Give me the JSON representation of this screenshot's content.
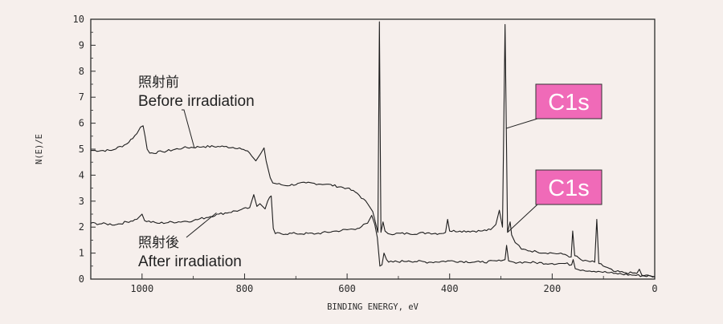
{
  "chart_data": {
    "type": "line",
    "title": "",
    "xlabel": "BINDING ENERGY, eV",
    "ylabel": "N(E)/E",
    "xlim": [
      1100,
      0
    ],
    "ylim": [
      0,
      10
    ],
    "x_reversed": true,
    "x_ticks": [
      1000,
      800,
      600,
      400,
      200,
      0
    ],
    "y_ticks": [
      0,
      1,
      2,
      3,
      4,
      5,
      6,
      7,
      8,
      9,
      10
    ],
    "grid": false,
    "legend": "none",
    "series": [
      {
        "name": "照射前 Before irradiation",
        "color": "#1e1e1e",
        "points": [
          [
            1100,
            4.95
          ],
          [
            1060,
            4.95
          ],
          [
            1030,
            5.2
          ],
          [
            1010,
            5.6
          ],
          [
            1003,
            5.85
          ],
          [
            998,
            5.9
          ],
          [
            994,
            5.5
          ],
          [
            990,
            5.0
          ],
          [
            985,
            4.85
          ],
          [
            960,
            4.9
          ],
          [
            920,
            5.05
          ],
          [
            880,
            5.1
          ],
          [
            840,
            5.1
          ],
          [
            810,
            5.05
          ],
          [
            790,
            4.85
          ],
          [
            778,
            4.55
          ],
          [
            768,
            4.85
          ],
          [
            762,
            5.05
          ],
          [
            758,
            4.55
          ],
          [
            750,
            3.9
          ],
          [
            745,
            3.7
          ],
          [
            720,
            3.6
          ],
          [
            680,
            3.7
          ],
          [
            640,
            3.65
          ],
          [
            600,
            3.5
          ],
          [
            580,
            3.3
          ],
          [
            560,
            2.9
          ],
          [
            550,
            2.6
          ],
          [
            545,
            2.2
          ],
          [
            540,
            1.8
          ],
          [
            537,
            9.9
          ],
          [
            534,
            1.8
          ],
          [
            530,
            2.2
          ],
          [
            526,
            1.85
          ],
          [
            520,
            1.75
          ],
          [
            480,
            1.75
          ],
          [
            440,
            1.78
          ],
          [
            420,
            1.75
          ],
          [
            408,
            1.8
          ],
          [
            404,
            2.3
          ],
          [
            400,
            1.85
          ],
          [
            380,
            1.85
          ],
          [
            340,
            1.85
          ],
          [
            320,
            1.9
          ],
          [
            310,
            2.1
          ],
          [
            303,
            2.65
          ],
          [
            297,
            2.0
          ],
          [
            292,
            9.8
          ],
          [
            287,
            1.8
          ],
          [
            282,
            2.2
          ],
          [
            279,
            1.7
          ],
          [
            272,
            1.4
          ],
          [
            265,
            1.3
          ],
          [
            260,
            1.15
          ],
          [
            230,
            1.05
          ],
          [
            200,
            1.0
          ],
          [
            175,
            0.95
          ],
          [
            163,
            0.85
          ],
          [
            160,
            1.85
          ],
          [
            156,
            0.9
          ],
          [
            140,
            0.7
          ],
          [
            117,
            0.65
          ],
          [
            113,
            2.3
          ],
          [
            109,
            0.6
          ],
          [
            80,
            0.3
          ],
          [
            60,
            0.25
          ],
          [
            35,
            0.22
          ],
          [
            30,
            0.38
          ],
          [
            25,
            0.15
          ],
          [
            0,
            0.1
          ]
        ]
      },
      {
        "name": "照射後 After irradiation",
        "color": "#1e1e1e",
        "points": [
          [
            1100,
            2.15
          ],
          [
            1050,
            2.1
          ],
          [
            1010,
            2.3
          ],
          [
            1000,
            2.5
          ],
          [
            995,
            2.25
          ],
          [
            970,
            2.15
          ],
          [
            900,
            2.25
          ],
          [
            850,
            2.5
          ],
          [
            810,
            2.65
          ],
          [
            790,
            2.75
          ],
          [
            782,
            3.25
          ],
          [
            776,
            2.8
          ],
          [
            770,
            2.9
          ],
          [
            760,
            2.7
          ],
          [
            755,
            3.0
          ],
          [
            751,
            3.15
          ],
          [
            748,
            3.2
          ],
          [
            744,
            1.95
          ],
          [
            740,
            1.75
          ],
          [
            700,
            1.75
          ],
          [
            660,
            1.75
          ],
          [
            620,
            1.85
          ],
          [
            580,
            1.95
          ],
          [
            560,
            2.15
          ],
          [
            552,
            2.45
          ],
          [
            546,
            2.1
          ],
          [
            541,
            1.6
          ],
          [
            536,
            0.5
          ],
          [
            532,
            0.55
          ],
          [
            528,
            1.0
          ],
          [
            523,
            0.75
          ],
          [
            519,
            0.65
          ],
          [
            480,
            0.7
          ],
          [
            440,
            0.65
          ],
          [
            400,
            0.7
          ],
          [
            340,
            0.65
          ],
          [
            300,
            0.7
          ],
          [
            292,
            0.75
          ],
          [
            289,
            1.3
          ],
          [
            285,
            0.7
          ],
          [
            275,
            0.65
          ],
          [
            250,
            0.65
          ],
          [
            200,
            0.6
          ],
          [
            175,
            0.6
          ],
          [
            162,
            0.55
          ],
          [
            159,
            0.75
          ],
          [
            155,
            0.4
          ],
          [
            140,
            0.35
          ],
          [
            110,
            0.3
          ],
          [
            80,
            0.22
          ],
          [
            40,
            0.15
          ],
          [
            0,
            0.1
          ]
        ]
      }
    ],
    "annotations": [
      {
        "id": "before",
        "lines": [
          "照射前",
          "Before irradiation"
        ],
        "target": [
          898,
          5.05
        ]
      },
      {
        "id": "after",
        "lines": [
          "照射後",
          "After irradiation"
        ],
        "target": [
          855,
          2.55
        ]
      }
    ],
    "tags": [
      {
        "id": "c1s-before",
        "label": "C1s",
        "color": "#f06ab8",
        "target": [
          290,
          5.8
        ]
      },
      {
        "id": "c1s-after",
        "label": "C1s",
        "color": "#f06ab8",
        "target": [
          287,
          1.8
        ]
      }
    ]
  }
}
